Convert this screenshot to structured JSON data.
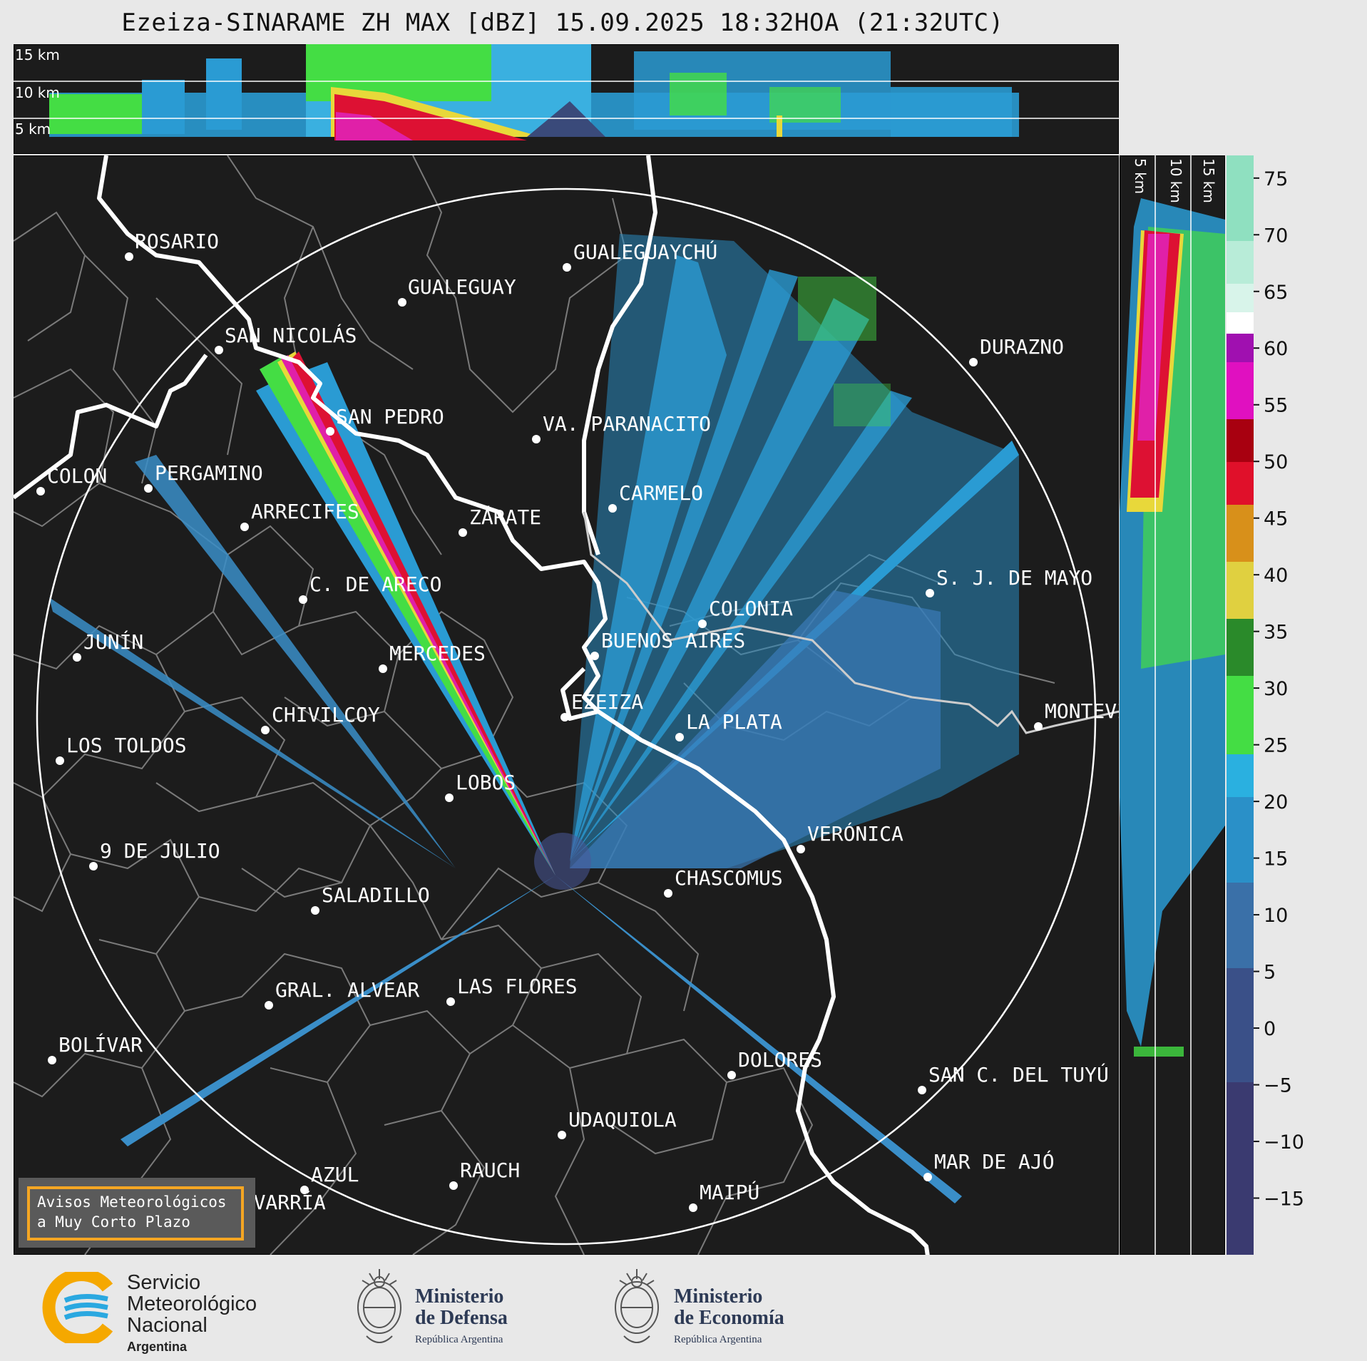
{
  "header": {
    "title": "Ezeiza-SINARAME ZH MAX [dBZ] 15.09.2025 18:32HOA (21:32UTC)"
  },
  "top_panel": {
    "altitude_labels": [
      "15 km",
      "10 km",
      "5 km"
    ]
  },
  "side_panel": {
    "altitude_labels": [
      "5 km",
      "10 km",
      "15 km"
    ]
  },
  "map": {
    "cities": [
      {
        "name": "ROSARIO"
      },
      {
        "name": "GUALEGUAYCHÚ"
      },
      {
        "name": "GUALEGUAY"
      },
      {
        "name": "SAN NICOLÁS"
      },
      {
        "name": "DURAZNO"
      },
      {
        "name": "SAN PEDRO"
      },
      {
        "name": "VA. PARANACITO"
      },
      {
        "name": "COLON"
      },
      {
        "name": "PERGAMINO"
      },
      {
        "name": "CARMELO"
      },
      {
        "name": "ARRECIFES"
      },
      {
        "name": "ZÁRATE"
      },
      {
        "name": "C. DE ARECO"
      },
      {
        "name": "S. J. DE MAYO"
      },
      {
        "name": "COLONIA"
      },
      {
        "name": "JUNÍN"
      },
      {
        "name": "BUENOS AIRES"
      },
      {
        "name": "MERCEDES"
      },
      {
        "name": "EZEIZA"
      },
      {
        "name": "MONTEVIDEO"
      },
      {
        "name": "CHIVILCOY"
      },
      {
        "name": "LA PLATA"
      },
      {
        "name": "LOS TOLDOS"
      },
      {
        "name": "LOBOS"
      },
      {
        "name": "VERÓNICA"
      },
      {
        "name": "9 DE JULIO"
      },
      {
        "name": "CHASCOMUS"
      },
      {
        "name": "SALADILLO"
      },
      {
        "name": "GRAL. ALVEAR"
      },
      {
        "name": "LAS FLORES"
      },
      {
        "name": "BOLÍVAR"
      },
      {
        "name": "DOLORES"
      },
      {
        "name": "SAN C. DEL TUYÚ"
      },
      {
        "name": "UDAQUIOLA"
      },
      {
        "name": "MAR DE AJÓ"
      },
      {
        "name": "AZUL"
      },
      {
        "name": "RAUCH"
      },
      {
        "name": "OLAVARRÍA"
      },
      {
        "name": "MAIPÚ"
      }
    ]
  },
  "colorbar": {
    "unit": "dBZ",
    "ticks": [
      "75",
      "70",
      "65",
      "60",
      "55",
      "50",
      "45",
      "40",
      "35",
      "30",
      "25",
      "20",
      "15",
      "10",
      "5",
      "0",
      "−5",
      "−10",
      "−15"
    ],
    "range": [
      -20,
      77
    ]
  },
  "warning_box": {
    "line1": "Avisos Meteorológicos",
    "line2": "a Muy Corto Plazo"
  },
  "footer": {
    "smn": {
      "line1": "Servicio",
      "line2": "Meteorológico",
      "line3": "Nacional",
      "line4": "Argentina"
    },
    "defensa": {
      "line1": "Ministerio",
      "line2": "de Defensa",
      "line3": "República Argentina"
    },
    "economia": {
      "line1": "Ministerio",
      "line2": "de Economía",
      "line3": "República Argentina"
    }
  },
  "colors": {
    "panel_bg": "#1c1c1c",
    "figure_bg": "#e8e8e8",
    "coast": "#ffffff",
    "boundary": "#7a7a7a",
    "warning_border": "#f5a623"
  }
}
